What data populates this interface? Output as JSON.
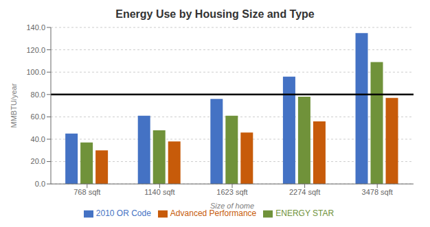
{
  "chart_data": {
    "type": "bar",
    "title": "Energy Use by Housing Size and Type",
    "xlabel": "Size of home",
    "ylabel": "MMBTU/year",
    "categories": [
      "768 sqft",
      "1140 sqft",
      "1623 sqft",
      "2274 sqft",
      "3478 sqft"
    ],
    "series": [
      {
        "name": "2010 OR Code",
        "color": "#4472C4",
        "values": [
          45,
          61,
          76,
          96,
          135
        ]
      },
      {
        "name": "ENERGY STAR",
        "color": "#70923A",
        "values": [
          37,
          48,
          61,
          78,
          109
        ]
      },
      {
        "name": "Advanced Performance",
        "color": "#C75B0A",
        "values": [
          30,
          38,
          46,
          56,
          77
        ]
      }
    ],
    "reference_lines": [
      {
        "value": 80,
        "color": "#000000"
      }
    ],
    "ylim": [
      0,
      140
    ],
    "yticks": [
      {
        "value": 0,
        "label": "0.0"
      },
      {
        "value": 20,
        "label": "20.0"
      },
      {
        "value": 40,
        "label": "40.0"
      },
      {
        "value": 60,
        "label": "60.0"
      },
      {
        "value": 80,
        "label": "80.0"
      },
      {
        "value": 100,
        "label": "100.0"
      },
      {
        "value": 120,
        "label": "120.0"
      },
      {
        "value": 140,
        "label": "140.0"
      }
    ],
    "grid": true,
    "legend": "bottom"
  }
}
